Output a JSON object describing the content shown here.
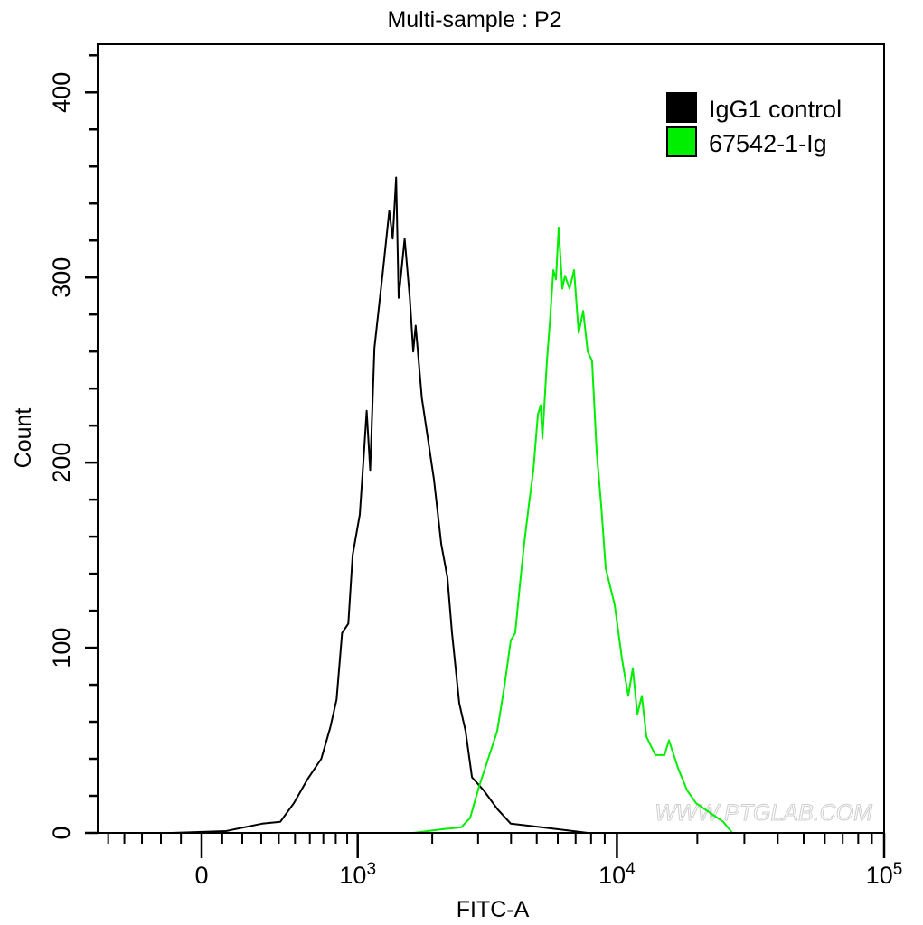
{
  "chart_data": {
    "type": "line",
    "title": "Multi-sample : P2",
    "xlabel": "FITC-A",
    "ylabel": "Count",
    "x_scale": "biexponential",
    "xlim": [
      -570,
      100000
    ],
    "ylim": [
      0,
      426
    ],
    "x_ticks": [
      {
        "value": 0,
        "base": "0",
        "exp": ""
      },
      {
        "value": 1000,
        "base": "10",
        "exp": "3"
      },
      {
        "value": 10000,
        "base": "10",
        "exp": "4"
      },
      {
        "value": 100000,
        "base": "10",
        "exp": "5"
      }
    ],
    "y_ticks": [
      "0",
      "100",
      "200",
      "300",
      "400"
    ],
    "grid": false,
    "legend_position": "top-right",
    "watermark": "WWW.PTGLAB.COM",
    "series": [
      {
        "name": "IgG1 control",
        "color": "#000000",
        "x": [
          -145,
          118,
          209,
          305,
          409,
          492,
          584,
          684,
          755,
          807,
          854,
          910,
          951,
          1021,
          1064,
          1091,
          1129,
          1176,
          1276,
          1352,
          1396,
          1442,
          1475,
          1559,
          1633,
          1685,
          1723,
          1821,
          2031,
          2167,
          2290,
          2384,
          2543,
          2687,
          2843,
          3150,
          3547,
          3991,
          5250,
          7770
        ],
        "y": [
          0,
          1,
          3,
          5,
          6,
          16,
          29,
          40,
          57,
          72,
          108,
          113,
          150,
          172,
          206,
          228,
          196,
          262,
          304,
          336,
          321,
          354,
          289,
          321,
          289,
          260,
          274,
          235,
          191,
          156,
          138,
          108,
          70,
          55,
          30,
          23,
          13,
          5,
          3,
          0
        ]
      },
      {
        "name": "67542-1-Ig",
        "color": "#00ee00",
        "x": [
          1685,
          2200,
          2582,
          2797,
          3026,
          3277,
          3547,
          3775,
          3991,
          4148,
          4314,
          4488,
          4668,
          4855,
          5049,
          5173,
          5250,
          5461,
          5590,
          5773,
          5907,
          6044,
          6237,
          6388,
          6643,
          6908,
          7184,
          7470,
          7770,
          8068,
          8393,
          8727,
          9073,
          9811,
          10440,
          11030,
          11470,
          11920,
          12400,
          12890,
          13940,
          15080,
          15660,
          16930,
          18310,
          19790,
          22250,
          25000,
          27040
        ],
        "y": [
          0,
          2,
          3,
          8,
          25,
          40,
          55,
          79,
          104,
          108,
          133,
          157,
          177,
          196,
          226,
          231,
          213,
          255,
          274,
          304,
          299,
          327,
          294,
          301,
          294,
          304,
          270,
          282,
          260,
          255,
          206,
          177,
          143,
          123,
          94,
          74,
          89,
          64,
          74,
          52,
          42,
          42,
          50,
          35,
          23,
          16,
          11,
          6,
          0
        ]
      }
    ]
  }
}
